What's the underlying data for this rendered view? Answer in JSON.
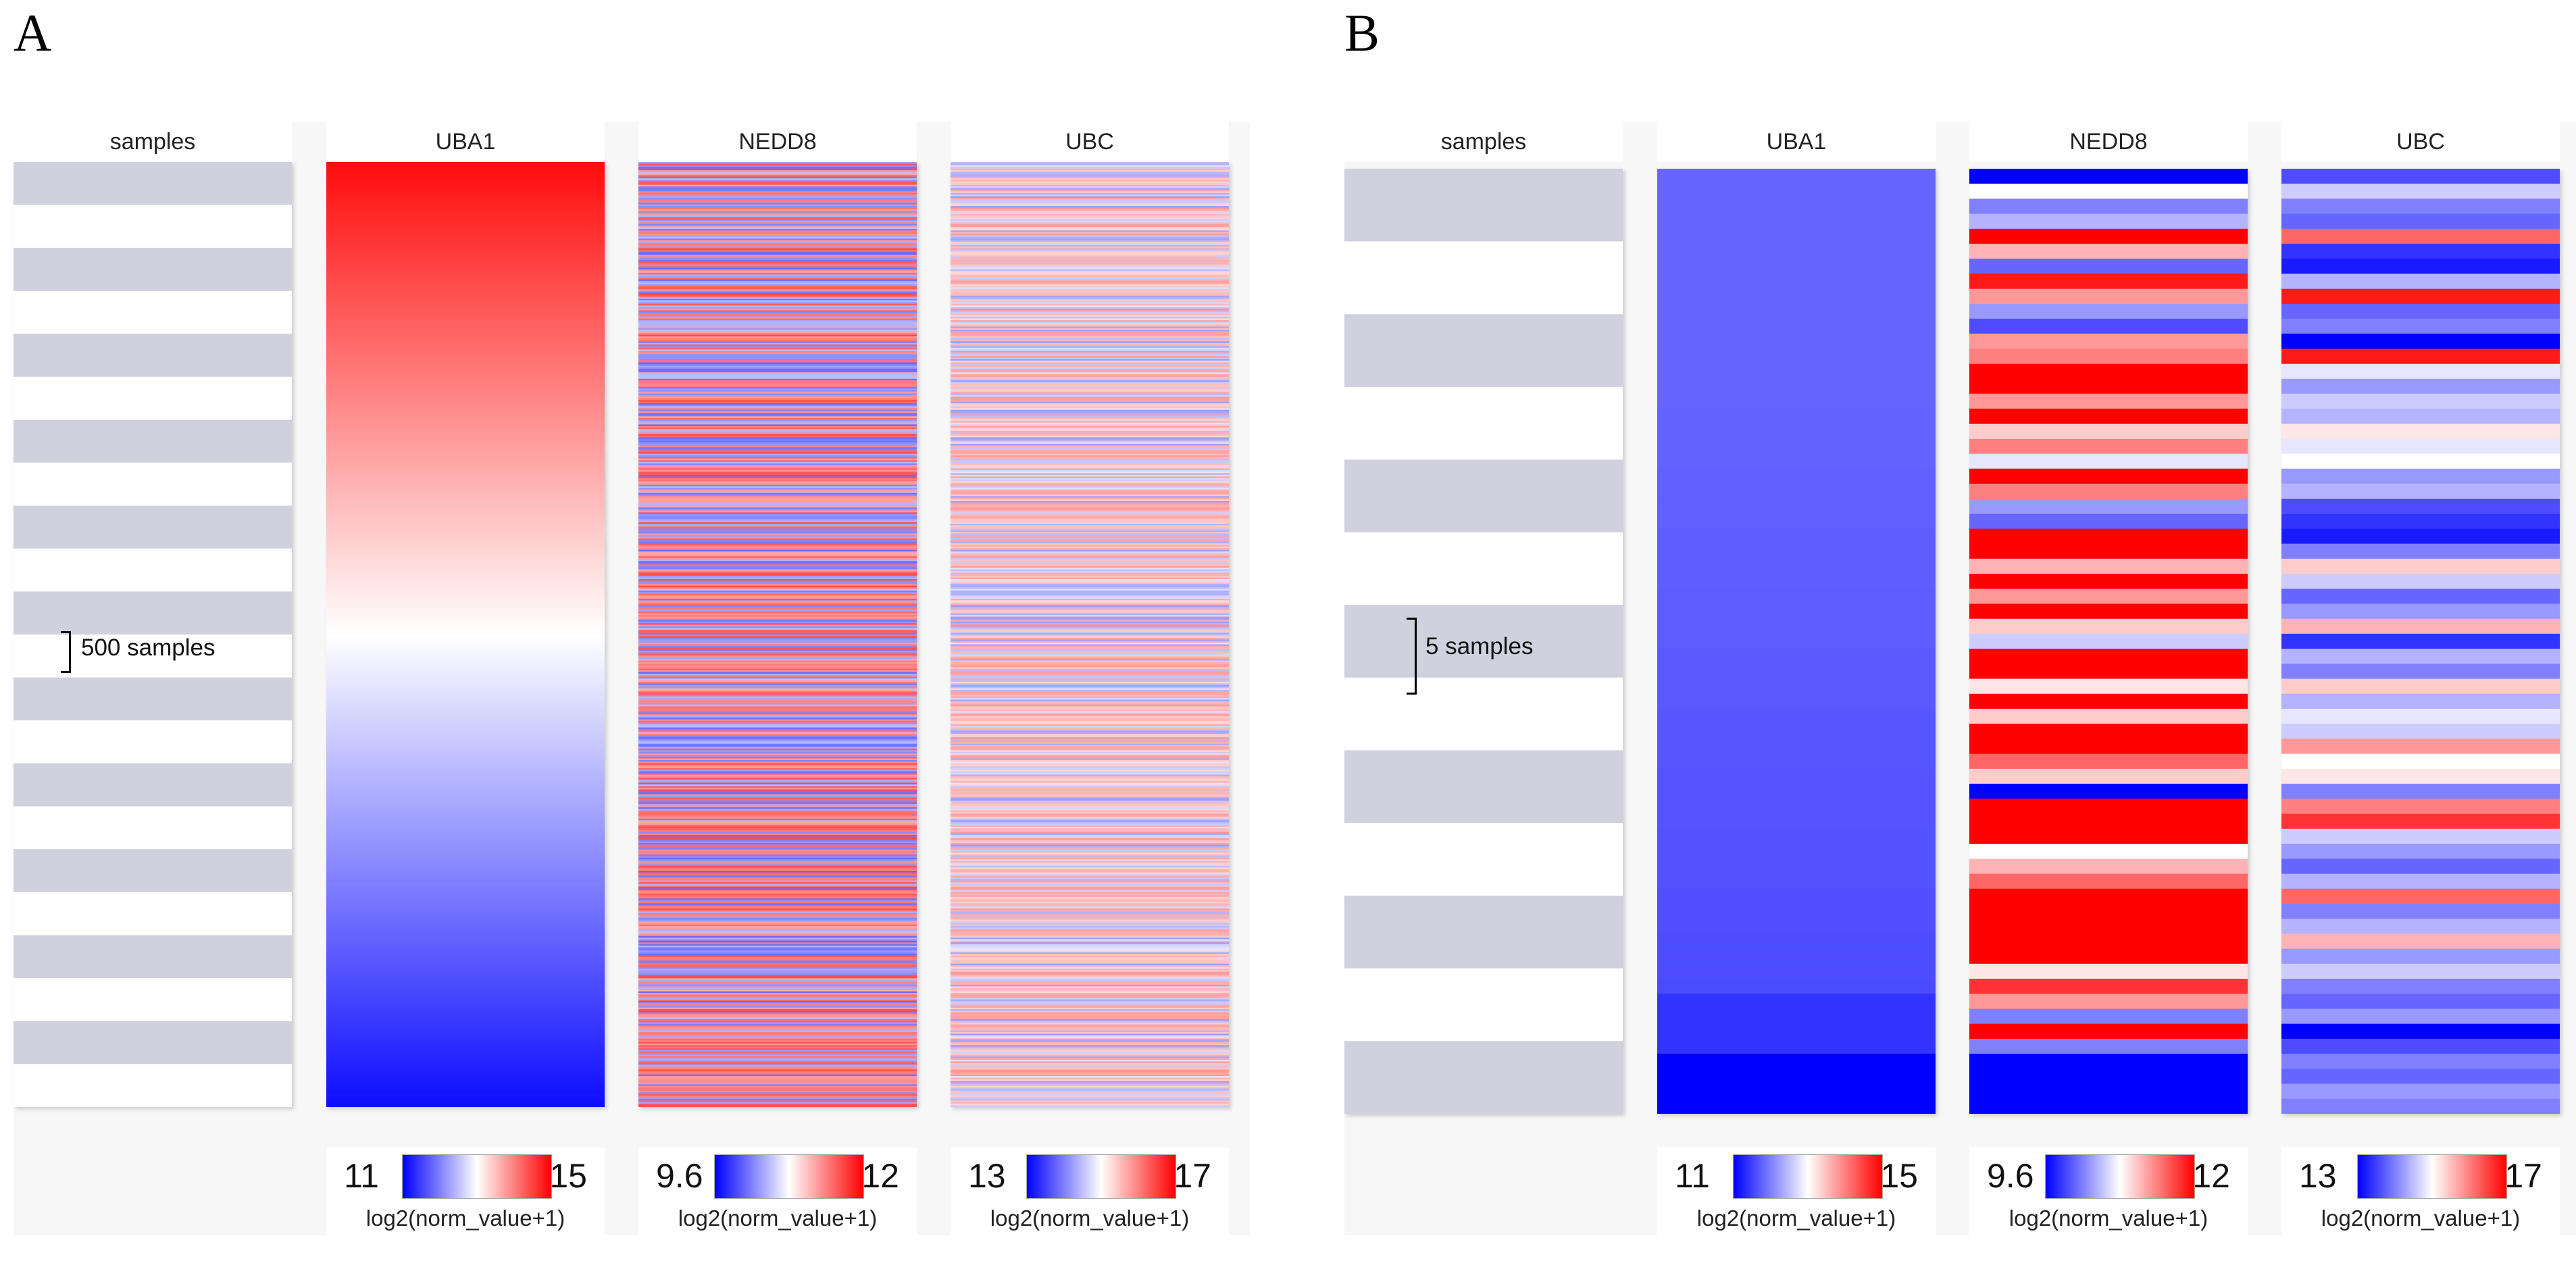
{
  "colors": {
    "low": "#0000ff",
    "mid": "#ffffff",
    "high": "#ff0000",
    "stripe": "#d0d0de"
  },
  "chart_data": [
    {
      "type": "heatmap",
      "panel_label": "A",
      "samples_header": "samples",
      "scale_label": "500 samples",
      "n_rows": 580,
      "columns": [
        {
          "name": "UBA1",
          "min": "11",
          "max": "15",
          "legend_title": "log2(norm_value+1)",
          "pattern": "gradient"
        },
        {
          "name": "NEDD8",
          "min": "9.6",
          "max": "12",
          "legend_title": "log2(norm_value+1)",
          "pattern": "dense-mixed"
        },
        {
          "name": "UBC",
          "min": "13",
          "max": "17",
          "legend_title": "log2(norm_value+1)",
          "pattern": "dense-light"
        }
      ]
    },
    {
      "type": "heatmap",
      "panel_label": "B",
      "samples_header": "samples",
      "scale_label": "5 samples",
      "n_rows": 63,
      "columns": [
        {
          "name": "UBA1",
          "min": "11",
          "max": "15",
          "legend_title": "log2(norm_value+1)",
          "values": [
            -0.6,
            -0.6,
            -0.6,
            -0.6,
            -0.6,
            -0.6,
            -0.6,
            -0.6,
            -0.6,
            -0.6,
            -0.6,
            -0.6,
            -0.6,
            -0.6,
            -0.6,
            -0.6,
            -0.61,
            -0.61,
            -0.61,
            -0.61,
            -0.62,
            -0.62,
            -0.62,
            -0.62,
            -0.63,
            -0.63,
            -0.63,
            -0.63,
            -0.64,
            -0.64,
            -0.64,
            -0.64,
            -0.65,
            -0.65,
            -0.65,
            -0.65,
            -0.66,
            -0.66,
            -0.66,
            -0.66,
            -0.67,
            -0.67,
            -0.67,
            -0.67,
            -0.68,
            -0.68,
            -0.68,
            -0.68,
            -0.69,
            -0.69,
            -0.69,
            -0.7,
            -0.7,
            -0.7,
            -0.71,
            -0.8,
            -0.8,
            -0.8,
            -0.8,
            -1.0,
            -1.0,
            -1.0,
            -1.0
          ]
        },
        {
          "name": "NEDD8",
          "min": "9.6",
          "max": "12",
          "legend_title": "log2(norm_value+1)",
          "values": [
            -1.0,
            0.0,
            -0.5,
            -0.3,
            1.0,
            0.3,
            -0.6,
            0.9,
            0.4,
            -0.4,
            -0.7,
            0.4,
            0.5,
            1.0,
            1.0,
            0.4,
            1.0,
            0.2,
            0.5,
            -0.1,
            1.0,
            0.5,
            -0.4,
            -0.6,
            1.0,
            1.0,
            0.3,
            1.0,
            0.4,
            1.0,
            0.2,
            -0.2,
            1.0,
            1.0,
            0.1,
            1.0,
            0.2,
            1.0,
            1.0,
            0.6,
            0.2,
            -1.0,
            1.0,
            1.0,
            1.0,
            0.0,
            0.3,
            0.6,
            1.0,
            1.0,
            1.0,
            1.0,
            1.0,
            0.1,
            0.8,
            0.4,
            -0.5,
            1.0,
            -0.5,
            -1.0,
            -1.0,
            -1.0,
            -1.0
          ]
        },
        {
          "name": "UBC",
          "min": "13",
          "max": "17",
          "legend_title": "log2(norm_value+1)",
          "values": [
            -0.7,
            -0.2,
            -0.5,
            -0.6,
            0.6,
            -0.8,
            -0.9,
            -0.3,
            0.9,
            -0.6,
            -0.5,
            -1.0,
            0.9,
            -0.1,
            -0.4,
            -0.2,
            -0.3,
            0.1,
            -0.1,
            0.0,
            -0.4,
            -0.3,
            -0.7,
            -0.8,
            -0.9,
            -0.5,
            0.2,
            -0.2,
            -0.6,
            -0.4,
            0.3,
            -0.8,
            -0.3,
            -0.5,
            0.2,
            -0.3,
            -0.1,
            -0.2,
            0.4,
            0.0,
            0.1,
            -0.5,
            0.5,
            0.8,
            -0.2,
            -0.4,
            -0.6,
            -0.3,
            0.6,
            -0.5,
            -0.3,
            0.3,
            -0.4,
            -0.2,
            -0.5,
            -0.6,
            -0.4,
            -1.0,
            -0.7,
            -0.5,
            -0.6,
            -0.4,
            -0.5
          ]
        }
      ]
    }
  ]
}
